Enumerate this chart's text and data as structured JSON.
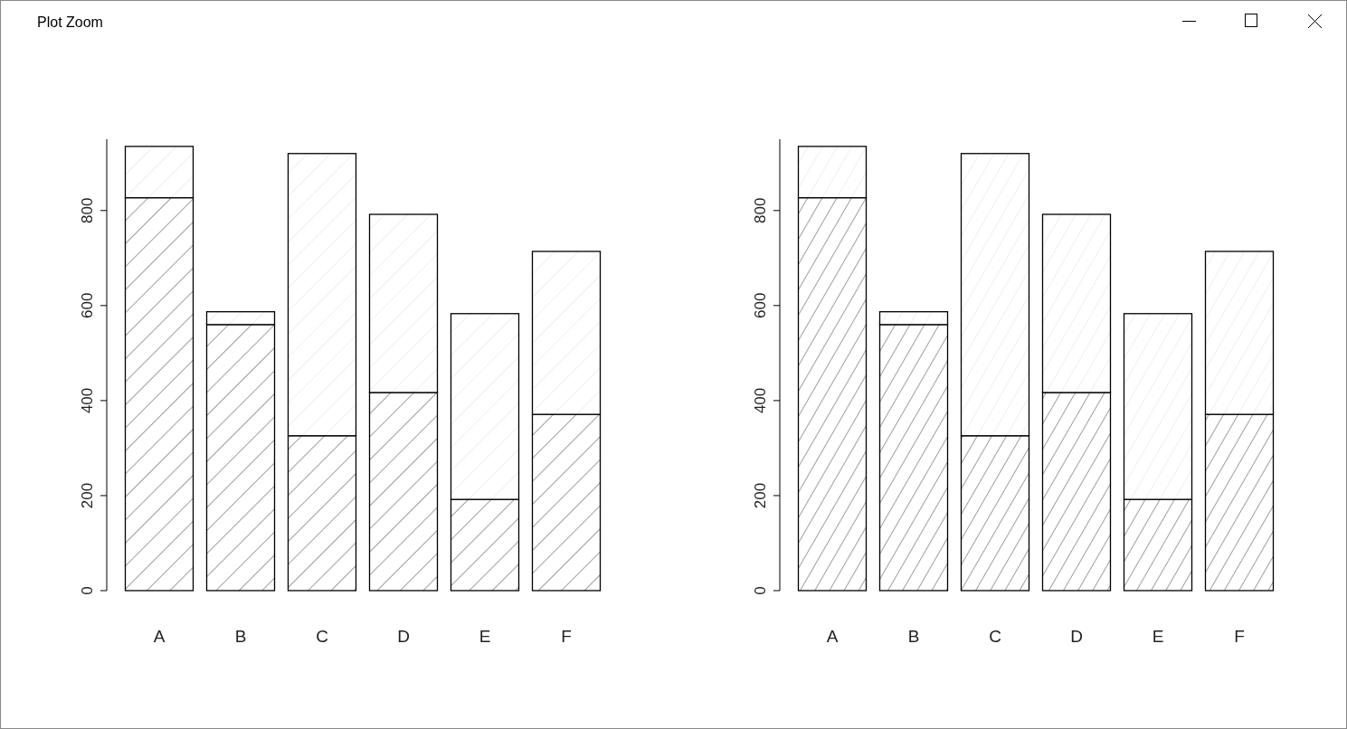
{
  "chart_data": [
    {
      "type": "bar",
      "annotations": [
        "Plot Zoom"
      ],
      "categories": [
        "A",
        "B",
        "C",
        "D",
        "E",
        "F"
      ],
      "stacked": true,
      "ylim": [
        0,
        950
      ],
      "yticks": [
        0,
        200,
        400,
        600,
        800
      ],
      "series": [
        {
          "color": "#000000",
          "values": [
            827,
            560,
            326,
            417,
            192,
            371
          ]
        },
        {
          "color": "#000000",
          "values": [
            108,
            27,
            594,
            375,
            391,
            343
          ]
        }
      ]
    },
    {
      "type": "bar",
      "categories": [
        "A",
        "B",
        "C",
        "D",
        "E",
        "F"
      ],
      "stacked": true,
      "ylim": [
        0,
        950
      ],
      "yticks": [
        0,
        200,
        400,
        600,
        800
      ],
      "series": [
        {
          "color": "#000000",
          "values": [
            827,
            560,
            326,
            417,
            192,
            371
          ]
        },
        {
          "color": "#000000",
          "values": [
            108,
            27,
            594,
            375,
            391,
            343
          ]
        }
      ]
    }
  ]
}
